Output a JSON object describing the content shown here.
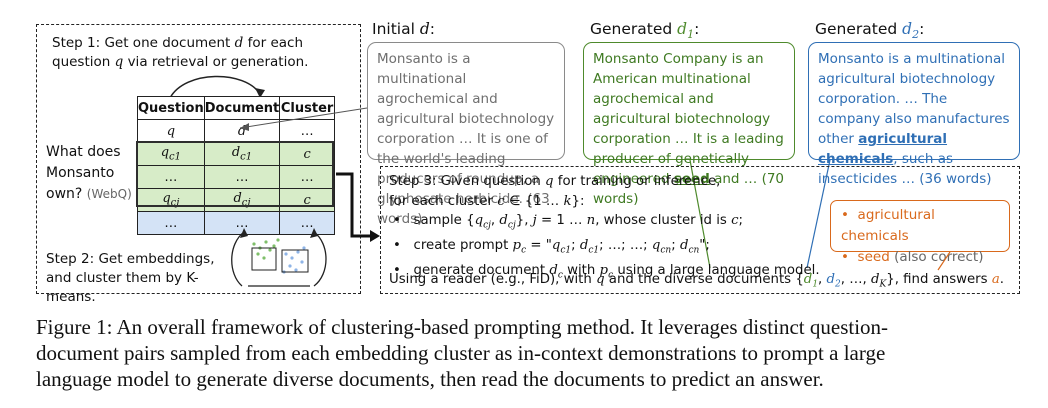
{
  "left": {
    "step1": "Step 1: Get one document d for each question q via retrieval or generation.",
    "step2": "Step 2: Get embeddings, and cluster them by K-means.",
    "question_line1": "What does",
    "question_line2": "Monsanto",
    "question_line3": "own?",
    "question_source": "(WebQ)",
    "table_headers": [
      "Question",
      "Document",
      "Cluster"
    ]
  },
  "initial": {
    "heading": "Initial d:",
    "text": "Monsanto is a multinational agrochemical and agricultural biotechnology corporation … It is one of the world's leading producers of roundup, a glyphosate herbicide. (63 words)",
    "color": "#8a8a8a"
  },
  "gen1": {
    "heading": "Generated d1:",
    "text_before": "Monsanto Company is an American multinational agrochemical and agricultural biotechnology corporation … It is a leading producer of genetically engineered ",
    "highlight": "seed",
    "text_after": " and … (70 words)",
    "color": "#4e8a2c"
  },
  "gen2": {
    "heading": "Generated d2:",
    "text_before": "Monsanto is a multinational agricultural biotechnology corporation. … The company also manufactures other ",
    "highlight": "agricultural chemicals",
    "text_after": ", such as insecticides … (36 words)",
    "color": "#2f6fb5"
  },
  "step3": {
    "line1": "Step 3: Given question q for training or inference,",
    "line2": "for each cluster c ∈ {1 … k}:",
    "bullet1": "sample {qcj, dcj}, j = 1 … n, whose cluster id is c;",
    "bullet2": "create prompt pc = \"qc1; dc1; …; …; qcn; dcn\";",
    "bullet3": "generate document dc with pc using a large language model.",
    "line_last": "Using a reader (e.g., FiD), with q and the diverse documents {d1, d2, …, dK}, find answers a."
  },
  "answers": {
    "a1": "agricultural chemicals",
    "a2": "seed",
    "a2_note": "(also correct)",
    "color": "#d9691c"
  },
  "caption": {
    "line1": "Figure 1: An overall framework of clustering-based prompting method. It leverages distinct question-",
    "line2": "document pairs sampled from each embedding cluster as in-context demonstrations to prompt a large",
    "line3": "language model to generate diverse documents, then read the documents to predict an answer."
  }
}
